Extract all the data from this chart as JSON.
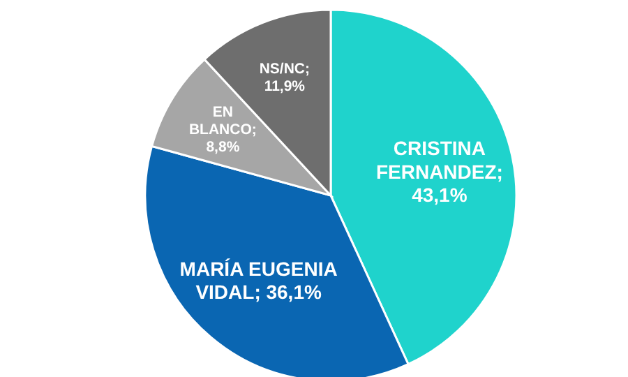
{
  "chart_data": {
    "type": "pie",
    "categories": [
      "CRISTINA FERNANDEZ",
      "MARÍA EUGENIA VIDAL",
      "EN BLANCO",
      "NS/NC"
    ],
    "values": [
      43.1,
      36.1,
      8.8,
      11.9
    ],
    "colors": [
      "#1fd3cc",
      "#0a66b2",
      "#a6a6a6",
      "#6e6e6e"
    ],
    "value_labels": [
      "; 43,1%",
      "; 36,1%",
      "; 8,8%",
      "; 11,9%"
    ],
    "legend": false
  }
}
